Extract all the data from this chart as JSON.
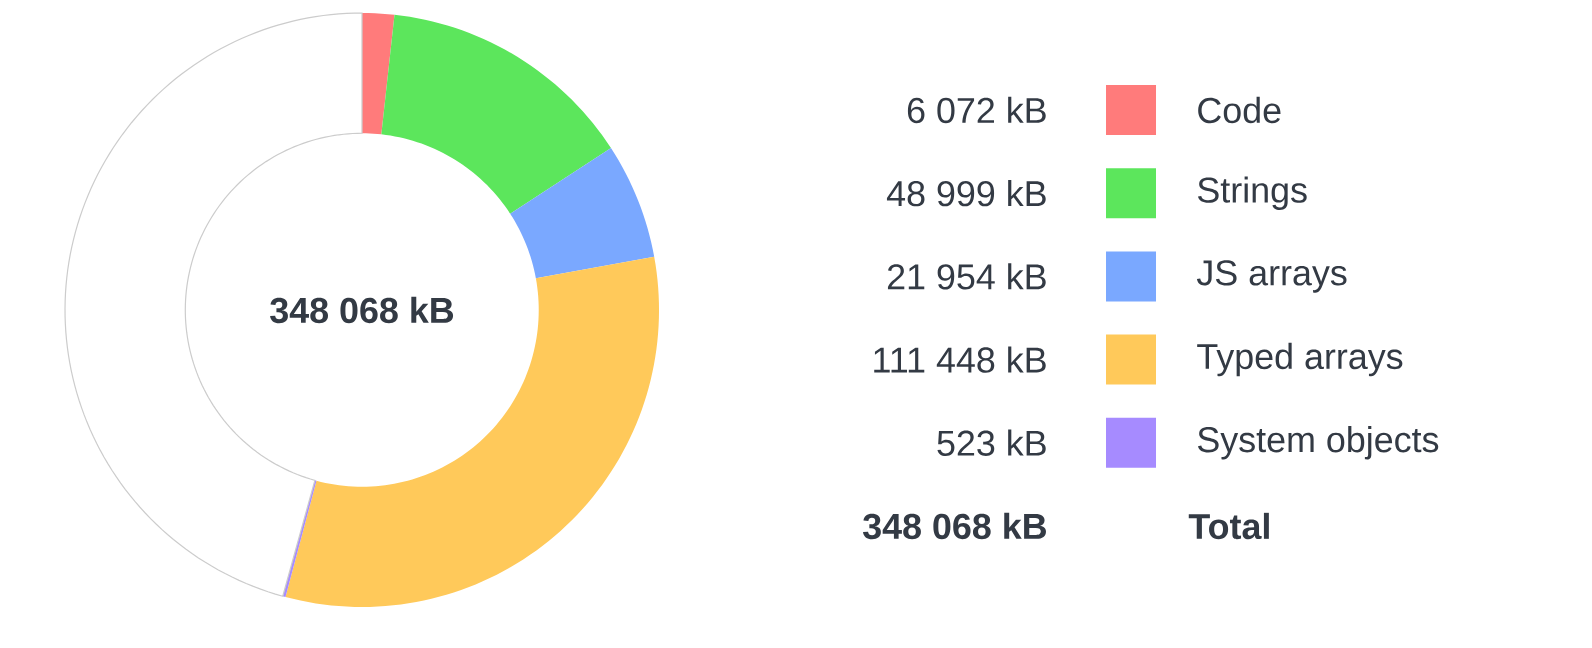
{
  "chart_data": {
    "type": "donut",
    "categories": [
      "Code",
      "Strings",
      "JS arrays",
      "Typed arrays",
      "System objects",
      null
    ],
    "values": [
      6072,
      48999,
      21954,
      111448,
      523,
      159072
    ],
    "colors": [
      "#ff7b7b",
      "#5ce65c",
      "#7aa8ff",
      "#ffc95a",
      "#a68bff",
      "#ffffff"
    ],
    "value_labels": [
      "6 072 kB",
      "48 999 kB",
      "21 954 kB",
      "111 448 kB",
      "523 kB",
      null
    ],
    "annotations": [
      "348 068 kB",
      "348 068 kB",
      "Total"
    ],
    "legend": "right"
  }
}
